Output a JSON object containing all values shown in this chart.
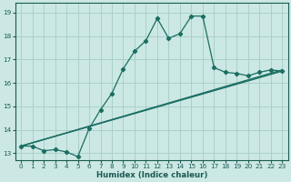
{
  "xlabel": "Humidex (Indice chaleur)",
  "background_color": "#cce8e4",
  "grid_color": "#aad0ca",
  "line_color": "#1a6e62",
  "xlim": [
    -0.5,
    23.5
  ],
  "ylim": [
    12.7,
    19.4
  ],
  "xticks": [
    0,
    1,
    2,
    3,
    4,
    5,
    6,
    7,
    8,
    9,
    10,
    11,
    12,
    13,
    14,
    15,
    16,
    17,
    18,
    19,
    20,
    21,
    22,
    23
  ],
  "yticks": [
    13,
    14,
    15,
    16,
    17,
    18,
    19
  ],
  "curve_x": [
    0,
    1,
    2,
    3,
    4,
    5,
    6,
    7,
    8,
    9,
    10,
    11,
    12,
    13,
    14,
    15,
    16,
    17,
    18,
    19,
    20,
    21,
    22,
    23
  ],
  "curve_y": [
    13.3,
    13.3,
    13.1,
    13.15,
    13.05,
    12.85,
    14.05,
    14.85,
    15.55,
    16.6,
    17.35,
    17.8,
    18.75,
    17.9,
    18.1,
    18.85,
    18.85,
    16.65,
    16.45,
    16.4,
    16.3,
    16.45,
    16.55,
    16.5
  ],
  "line2_x0": 0,
  "line2_y0": 13.3,
  "line2_x1": 23,
  "line2_y1": 16.55,
  "line3_x0": 0,
  "line3_y0": 13.3,
  "line3_x1": 23,
  "line3_y1": 16.5
}
